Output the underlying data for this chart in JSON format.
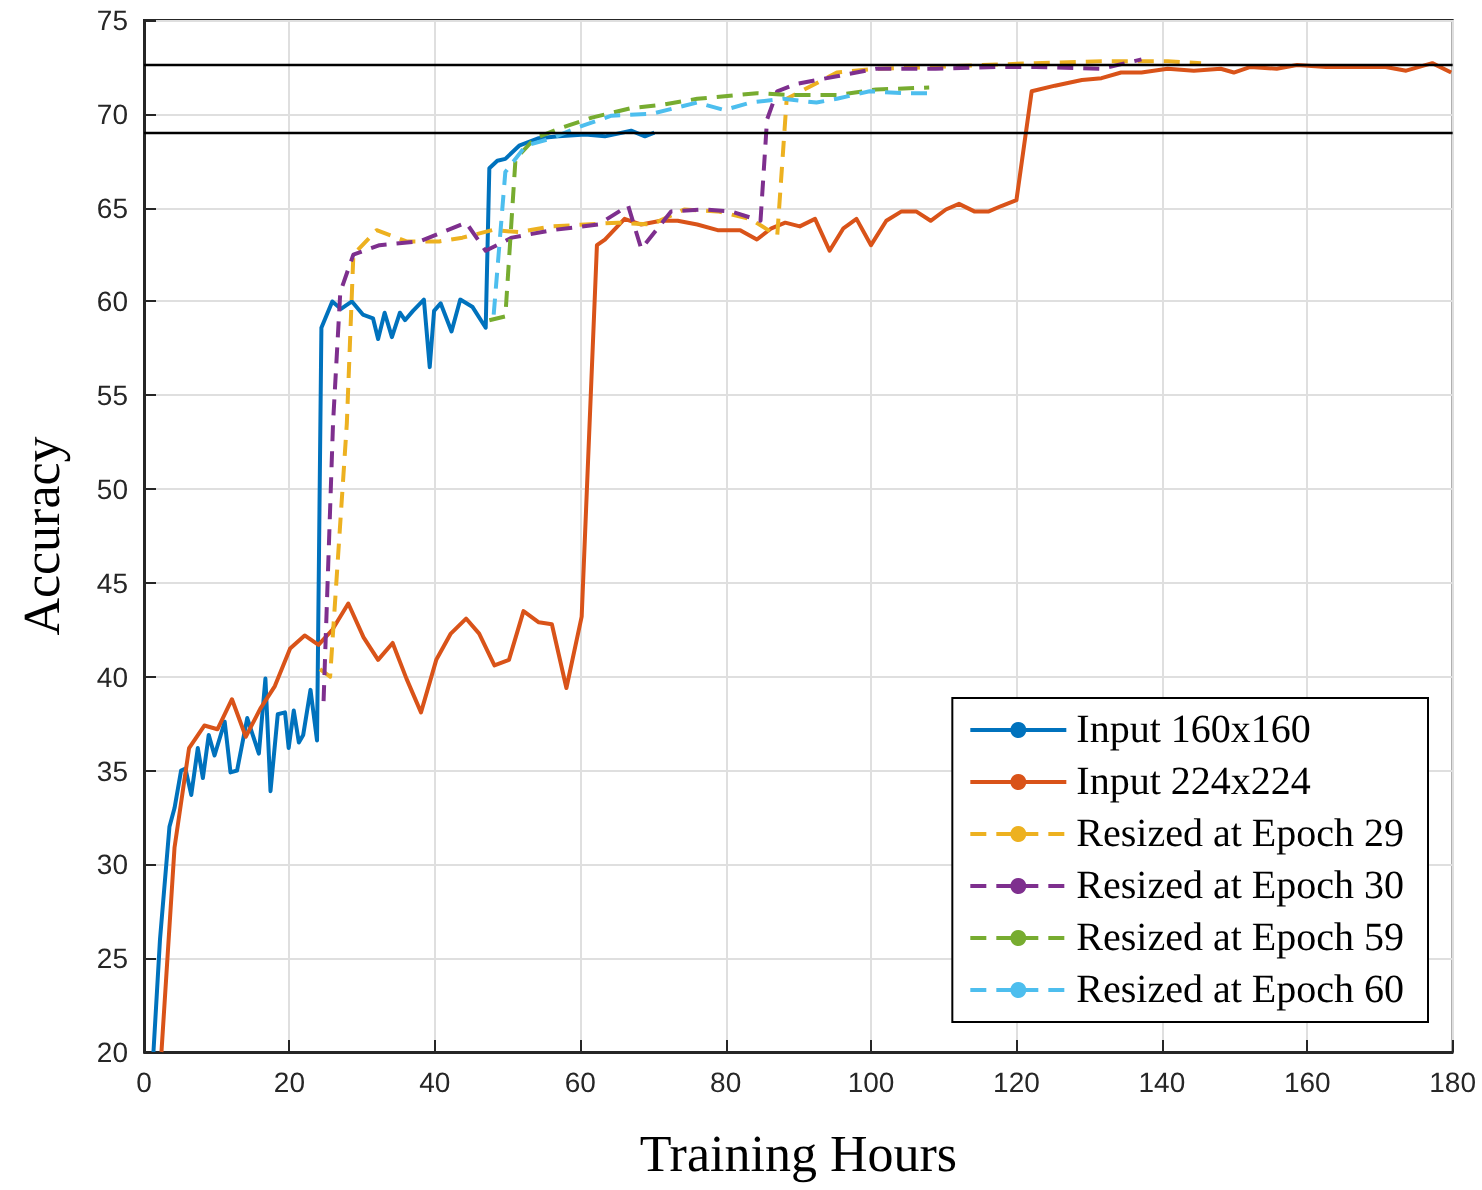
{
  "chart_data": {
    "type": "line",
    "xlabel": "Training Hours",
    "ylabel": "Accuracy",
    "xlim": [
      0,
      180
    ],
    "xticks": [
      0,
      20,
      40,
      60,
      80,
      100,
      120,
      140,
      160,
      180
    ],
    "ylim": [
      20,
      75
    ],
    "yticks": [
      20,
      25,
      30,
      35,
      40,
      45,
      50,
      55,
      60,
      65,
      70,
      75
    ],
    "grid": true,
    "legend": "bottom right",
    "marker": "none",
    "ref_lines": [
      {
        "axis": "y",
        "value": 72.6,
        "color": "#000000",
        "line_style": "solid"
      },
      {
        "axis": "y",
        "value": 69,
        "color": "#000000",
        "line_style": "solid"
      }
    ],
    "series": [
      {
        "name": "Input 160x160",
        "color": "#0072bd",
        "line_style": "solid",
        "x": [
          1.3,
          2.2,
          3.5,
          4.2,
          5.1,
          5.7,
          6.5,
          7.4,
          8.1,
          8.9,
          9.7,
          11.1,
          11.9,
          12.8,
          14.2,
          15.8,
          16.7,
          17.4,
          18.4,
          19.4,
          19.9,
          20.6,
          21.3,
          21.9,
          22.9,
          23.8,
          24.4,
          25.9,
          27.1,
          28.6,
          30.1,
          31.5,
          32.2,
          33.1,
          34.1,
          35.2,
          35.9,
          37.0,
          38.5,
          39.3,
          39.9,
          40.8,
          42.3,
          43.5,
          45.2,
          47.0,
          47.5,
          48.6,
          49.7,
          51.6,
          54.3,
          57.0,
          60.7,
          63.4,
          67.0,
          68.9,
          70.2
        ],
        "values": [
          20,
          26,
          32,
          33,
          35,
          35.1,
          33.7,
          36.2,
          34.6,
          36.9,
          35.8,
          37.6,
          34.9,
          35,
          37.8,
          35.9,
          39.9,
          33.9,
          38,
          38.1,
          36.2,
          38.2,
          36.5,
          36.9,
          39.3,
          36.6,
          58.6,
          60.0,
          59.6,
          60.0,
          59.3,
          59.1,
          58.0,
          59.4,
          58.1,
          59.4,
          59.0,
          59.5,
          60.1,
          56.5,
          59.5,
          59.9,
          58.4,
          60.1,
          59.7,
          58.6,
          67.1,
          67.5,
          67.6,
          68.3,
          68.7,
          68.8,
          68.9,
          68.8,
          69.1,
          68.8,
          69.0
        ]
      },
      {
        "name": "Input 224x224",
        "color": "#d95319",
        "line_style": "solid",
        "x": [
          2.4,
          4.2,
          6.2,
          8.3,
          10.1,
          12.1,
          14.0,
          16.0,
          18.0,
          20.1,
          22.1,
          24.0,
          25.9,
          28.1,
          30.2,
          32.2,
          34.2,
          36.1,
          38.1,
          40.2,
          42.2,
          44.3,
          46.1,
          48.2,
          50.2,
          52.2,
          54.3,
          56.1,
          58.1,
          60.2,
          62.3,
          63.4,
          66.1,
          68.4,
          71.1,
          73.4,
          76.1,
          78.9,
          82.0,
          84.3,
          86.3,
          88.2,
          90.2,
          92.3,
          94.3,
          96.2,
          98.0,
          100.0,
          102.1,
          104.2,
          106.2,
          108.2,
          110.3,
          112.1,
          114.2,
          116.2,
          118.0,
          120.0,
          122.1,
          125.3,
          129.0,
          131.7,
          134.4,
          137.2,
          140.8,
          144.4,
          148.1,
          149.9,
          152.2,
          155.8,
          158.6,
          162.6,
          167.2,
          170.8,
          173.6,
          177.2,
          179.8
        ],
        "values": [
          20,
          30.9,
          36.2,
          37.4,
          37.2,
          38.8,
          36.8,
          38.3,
          39.5,
          41.5,
          42.2,
          41.7,
          42.5,
          43.9,
          42.1,
          40.9,
          41.8,
          39.9,
          38.1,
          40.9,
          42.3,
          43.1,
          42.3,
          40.6,
          40.9,
          43.5,
          42.9,
          42.8,
          39.4,
          43.2,
          63.0,
          63.3,
          64.4,
          64.1,
          64.3,
          64.3,
          64.1,
          63.8,
          63.8,
          63.3,
          63.9,
          64.2,
          64.0,
          64.4,
          62.7,
          63.9,
          64.4,
          63.0,
          64.3,
          64.8,
          64.8,
          64.3,
          64.9,
          65.2,
          64.8,
          64.8,
          65.1,
          65.4,
          71.2,
          71.5,
          71.8,
          71.9,
          72.2,
          72.2,
          72.4,
          72.3,
          72.4,
          72.2,
          72.5,
          72.4,
          72.6,
          72.5,
          72.5,
          72.5,
          72.3,
          72.7,
          72.2
        ]
      },
      {
        "name": "Resized at Epoch 29",
        "color": "#edb120",
        "line_style": "dashed",
        "x": [
          24.2,
          25.6,
          27.9,
          28.8,
          32.0,
          36.1,
          40.6,
          43.8,
          47.9,
          51.6,
          56.1,
          60.7,
          65.2,
          69.8,
          74.3,
          78.9,
          83.4,
          87.1,
          88.4,
          95.3,
          100.7,
          108.9,
          115.3,
          122.6,
          131.7,
          140.8,
          145.4
        ],
        "values": [
          40.4,
          40.0,
          53.5,
          62.5,
          63.8,
          63.2,
          63.2,
          63.4,
          63.8,
          63.7,
          64.0,
          64.1,
          64.2,
          64.1,
          64.9,
          64.8,
          64.4,
          63.5,
          70.8,
          72.2,
          72.4,
          72.5,
          72.6,
          72.7,
          72.8,
          72.8,
          72.7
        ]
      },
      {
        "name": "Resized at Epoch 30",
        "color": "#7e2f8e",
        "line_style": "dashed",
        "x": [
          24.7,
          26.0,
          27.0,
          28.8,
          32.4,
          37.9,
          44.3,
          47.0,
          50.6,
          56.1,
          62.5,
          66.6,
          68.4,
          72.5,
          77.0,
          80.7,
          84.8,
          85.7,
          87.1,
          89.8,
          95.3,
          100.7,
          108.9,
          117.1,
          122.6,
          131.7,
          137.2
        ],
        "values": [
          38.7,
          53.5,
          60.5,
          62.5,
          63.0,
          63.2,
          64.2,
          62.7,
          63.4,
          63.8,
          64.1,
          65.1,
          62.8,
          64.8,
          64.9,
          64.8,
          64.3,
          69.7,
          71.2,
          71.6,
          72.0,
          72.4,
          72.4,
          72.5,
          72.5,
          72.4,
          72.9
        ]
      },
      {
        "name": "Resized at Epoch 59",
        "color": "#77ac30",
        "line_style": "dashed",
        "x": [
          47.5,
          49.7,
          51.1,
          53.8,
          57.0,
          61.6,
          67.0,
          71.6,
          76.1,
          84.3,
          88.9,
          95.3,
          100.7,
          108.0
        ],
        "values": [
          59.0,
          59.2,
          67.6,
          68.7,
          69.2,
          69.8,
          70.3,
          70.5,
          70.8,
          71.1,
          71.0,
          71.0,
          71.3,
          71.4
        ]
      },
      {
        "name": "Resized at Epoch 60",
        "color": "#4dbeee",
        "line_style": "dashed",
        "x": [
          48.1,
          49.7,
          52.5,
          56.1,
          59.8,
          64.3,
          69.8,
          76.1,
          79.8,
          83.4,
          87.9,
          92.5,
          95.3,
          99.8,
          104.4,
          108.0
        ],
        "values": [
          59.3,
          66.9,
          68.3,
          68.7,
          69.3,
          69.9,
          70.0,
          70.6,
          70.2,
          70.6,
          70.8,
          70.6,
          70.8,
          71.2,
          71.1,
          71.1
        ]
      }
    ]
  }
}
